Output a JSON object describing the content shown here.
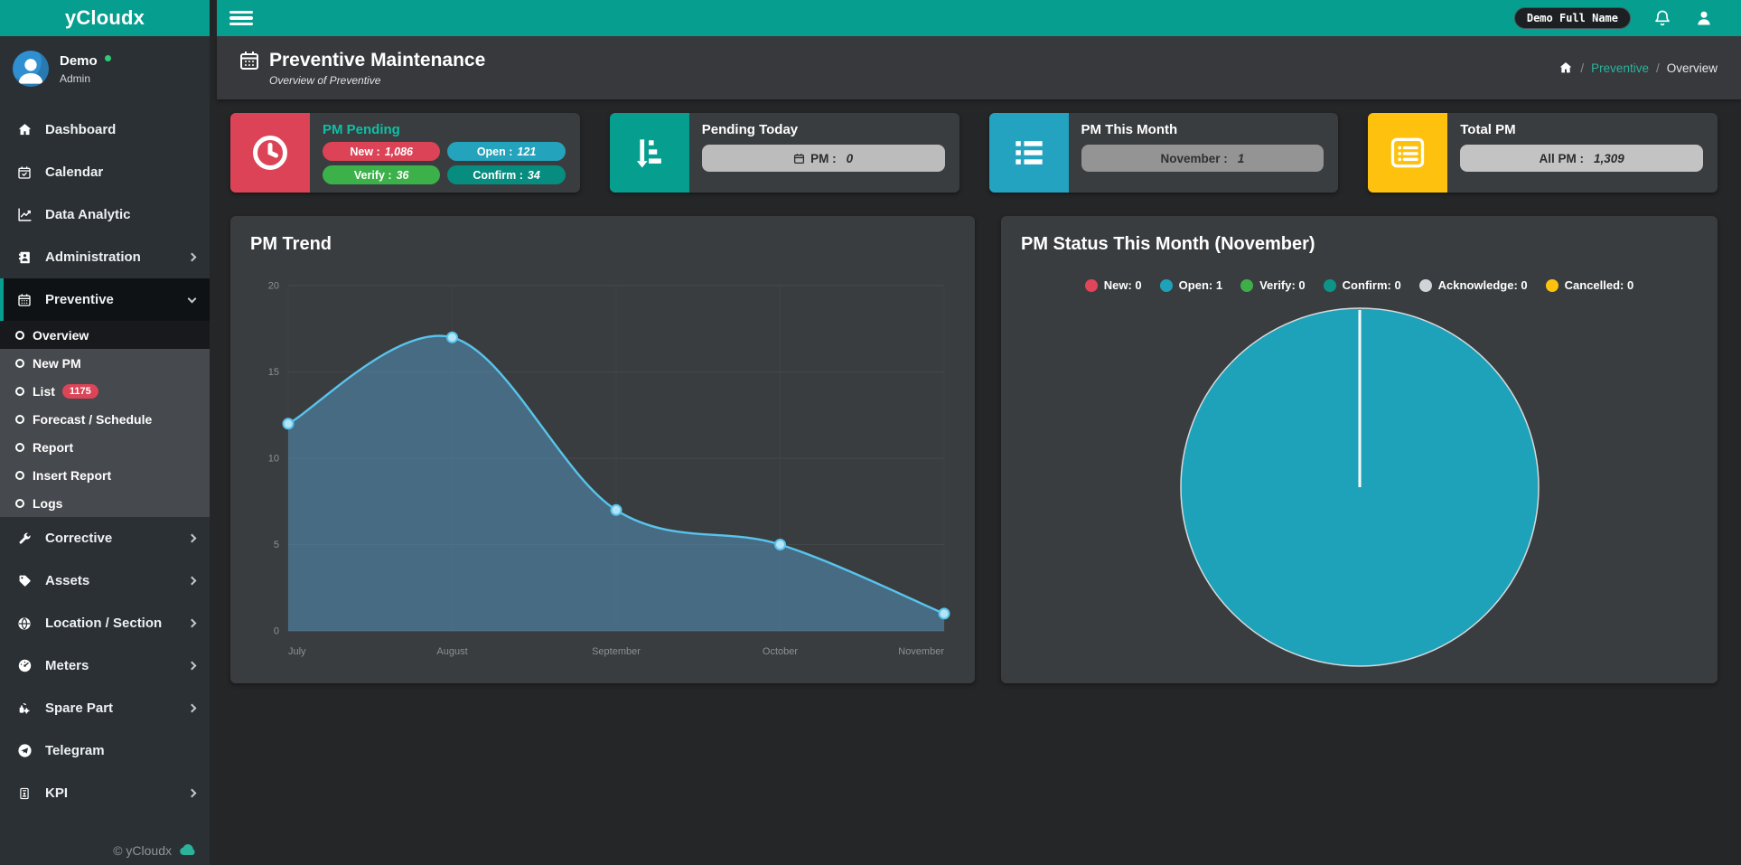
{
  "app": {
    "logo": "yCloudx",
    "topbar_user": "Demo Full Name"
  },
  "sidebar": {
    "user_name": "Demo",
    "user_role": "Admin",
    "items": [
      {
        "label": "Dashboard"
      },
      {
        "label": "Calendar"
      },
      {
        "label": "Data Analytic"
      },
      {
        "label": "Administration"
      },
      {
        "label": "Preventive"
      },
      {
        "label": "Corrective"
      },
      {
        "label": "Assets"
      },
      {
        "label": "Location / Section"
      },
      {
        "label": "Meters"
      },
      {
        "label": "Spare Part"
      },
      {
        "label": "Telegram"
      },
      {
        "label": "KPI"
      }
    ],
    "submenu": [
      {
        "label": "Overview"
      },
      {
        "label": "New PM"
      },
      {
        "label": "List",
        "badge": "1175"
      },
      {
        "label": "Forecast / Schedule"
      },
      {
        "label": "Report"
      },
      {
        "label": "Insert Report"
      },
      {
        "label": "Logs"
      }
    ],
    "footer": "© yCloudx"
  },
  "header": {
    "title": "Preventive Maintenance",
    "subtitle": "Overview of Preventive",
    "breadcrumb_1": "Preventive",
    "breadcrumb_2": "Overview"
  },
  "cards": {
    "pm_pending": {
      "title": "PM Pending",
      "pills": [
        {
          "label": "New :",
          "value": "1,086"
        },
        {
          "label": "Open :",
          "value": "121"
        },
        {
          "label": "Verify :",
          "value": "36"
        },
        {
          "label": "Confirm :",
          "value": "34"
        }
      ]
    },
    "pending_today": {
      "title": "Pending Today",
      "pill_label": "PM :",
      "pill_value": "0"
    },
    "pm_this_month": {
      "title": "PM This Month",
      "pill_label": "November :",
      "pill_value": "1"
    },
    "total_pm": {
      "title": "Total PM",
      "pill_label": "All PM :",
      "pill_value": "1,309"
    }
  },
  "chart_data": [
    {
      "type": "line",
      "title": "PM Trend",
      "x": [
        "July",
        "August",
        "September",
        "October",
        "November"
      ],
      "series": [
        {
          "name": "PM",
          "values": [
            12,
            17,
            7,
            5,
            1
          ]
        }
      ],
      "ylim": [
        0,
        20
      ],
      "yticks": [
        0,
        5,
        10,
        15,
        20
      ],
      "grid": true,
      "legend_position": "none",
      "line_color": "#58c4ec",
      "point_fill": "#b4e4f6",
      "area_color": "rgba(88,164,214,0.45)"
    },
    {
      "type": "pie",
      "title": "PM Status This Month (November)",
      "slices": [
        {
          "label": "New",
          "value": 0,
          "color": "#e0455a"
        },
        {
          "label": "Open",
          "value": 1,
          "color": "#1da2ba"
        },
        {
          "label": "Verify",
          "value": 0,
          "color": "#3fae49"
        },
        {
          "label": "Confirm",
          "value": 0,
          "color": "#0d9488"
        },
        {
          "label": "Acknowledge",
          "value": 0,
          "color": "#cfd4d8"
        },
        {
          "label": "Cancelled",
          "value": 0,
          "color": "#fdc10e"
        }
      ],
      "legend_position": "top"
    }
  ]
}
